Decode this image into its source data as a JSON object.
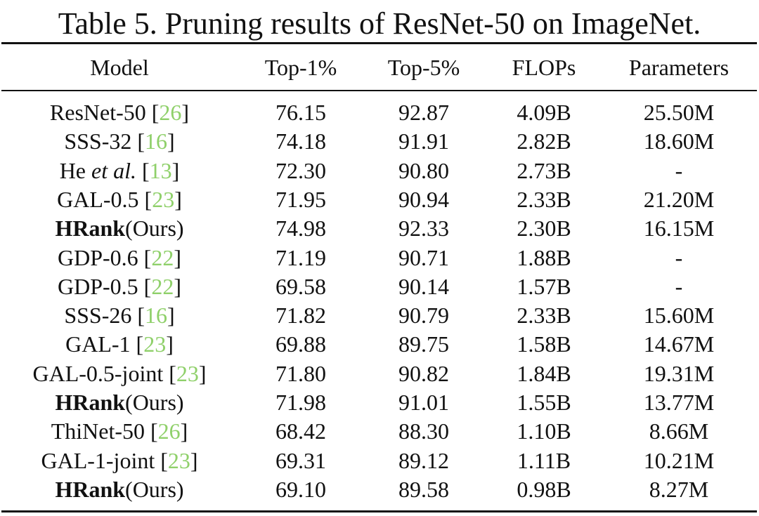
{
  "caption": "Table 5. Pruning results of ResNet-50 on ImageNet.",
  "columns": {
    "model": "Model",
    "top1": "Top-1%",
    "top5": "Top-5%",
    "flops": "FLOPs",
    "params": "Parameters"
  },
  "colors": {
    "citation": "#8fd06a",
    "text": "#111111",
    "rules": "#111111"
  },
  "rows": [
    {
      "name": "ResNet-50",
      "suffix": "",
      "style": "normal",
      "cite": "26",
      "top1": "76.15",
      "top5": "92.87",
      "flops": "4.09B",
      "params": "25.50M"
    },
    {
      "name": "SSS-32",
      "suffix": "",
      "style": "normal",
      "cite": "16",
      "top1": "74.18",
      "top5": "91.91",
      "flops": "2.82B",
      "params": "18.60M"
    },
    {
      "name": "He",
      "suffix": "et al.",
      "style": "italic-suffix",
      "cite": "13",
      "top1": "72.30",
      "top5": "90.80",
      "flops": "2.73B",
      "params": "-"
    },
    {
      "name": "GAL-0.5",
      "suffix": "",
      "style": "normal",
      "cite": "23",
      "top1": "71.95",
      "top5": "90.94",
      "flops": "2.33B",
      "params": "21.20M"
    },
    {
      "name": "HRank",
      "suffix": "(Ours)",
      "style": "bold",
      "cite": "",
      "top1": "74.98",
      "top5": "92.33",
      "flops": "2.30B",
      "params": "16.15M"
    },
    {
      "name": "GDP-0.6",
      "suffix": "",
      "style": "normal",
      "cite": "22",
      "top1": "71.19",
      "top5": "90.71",
      "flops": "1.88B",
      "params": "-"
    },
    {
      "name": "GDP-0.5",
      "suffix": "",
      "style": "normal",
      "cite": "22",
      "top1": "69.58",
      "top5": "90.14",
      "flops": "1.57B",
      "params": "-"
    },
    {
      "name": "SSS-26",
      "suffix": "",
      "style": "normal",
      "cite": "16",
      "top1": "71.82",
      "top5": "90.79",
      "flops": "2.33B",
      "params": "15.60M"
    },
    {
      "name": "GAL-1",
      "suffix": "",
      "style": "normal",
      "cite": "23",
      "top1": "69.88",
      "top5": "89.75",
      "flops": "1.58B",
      "params": "14.67M"
    },
    {
      "name": "GAL-0.5-joint",
      "suffix": "",
      "style": "normal",
      "cite": "23",
      "top1": "71.80",
      "top5": "90.82",
      "flops": "1.84B",
      "params": "19.31M"
    },
    {
      "name": "HRank",
      "suffix": "(Ours)",
      "style": "bold",
      "cite": "",
      "top1": "71.98",
      "top5": "91.01",
      "flops": "1.55B",
      "params": "13.77M"
    },
    {
      "name": "ThiNet-50",
      "suffix": "",
      "style": "normal",
      "cite": "26",
      "top1": "68.42",
      "top5": "88.30",
      "flops": "1.10B",
      "params": "8.66M"
    },
    {
      "name": "GAL-1-joint",
      "suffix": "",
      "style": "normal",
      "cite": "23",
      "top1": "69.31",
      "top5": "89.12",
      "flops": "1.11B",
      "params": "10.21M"
    },
    {
      "name": "HRank",
      "suffix": "(Ours)",
      "style": "bold",
      "cite": "",
      "top1": "69.10",
      "top5": "89.58",
      "flops": "0.98B",
      "params": "8.27M"
    }
  ]
}
